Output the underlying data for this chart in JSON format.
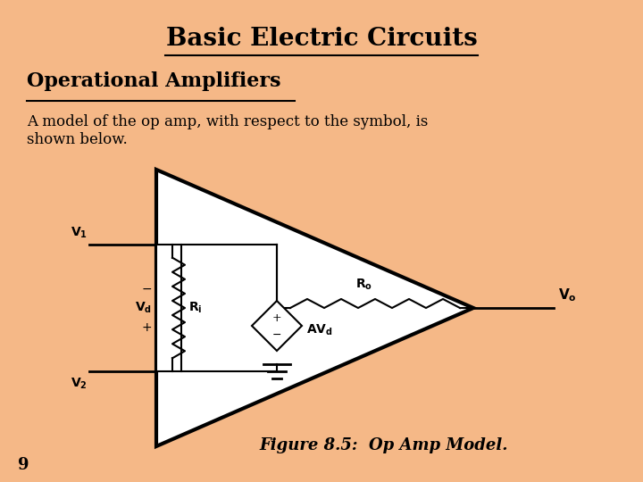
{
  "bg_color": "#F5B887",
  "title": "Basic Electric Circuits",
  "subtitle": "Operational Amplifiers",
  "body_text1": "A model of the op amp, with respect to the symbol, is",
  "body_text2": "shown below.",
  "figure_caption": "Figure 8.5:  Op Amp Model.",
  "page_number": "9",
  "triangle_fill": "#FFFFFF",
  "triangle_edge": "#000000",
  "line_color": "#000000",
  "title_fontsize": 20,
  "subtitle_fontsize": 16,
  "body_fontsize": 12,
  "caption_fontsize": 13
}
